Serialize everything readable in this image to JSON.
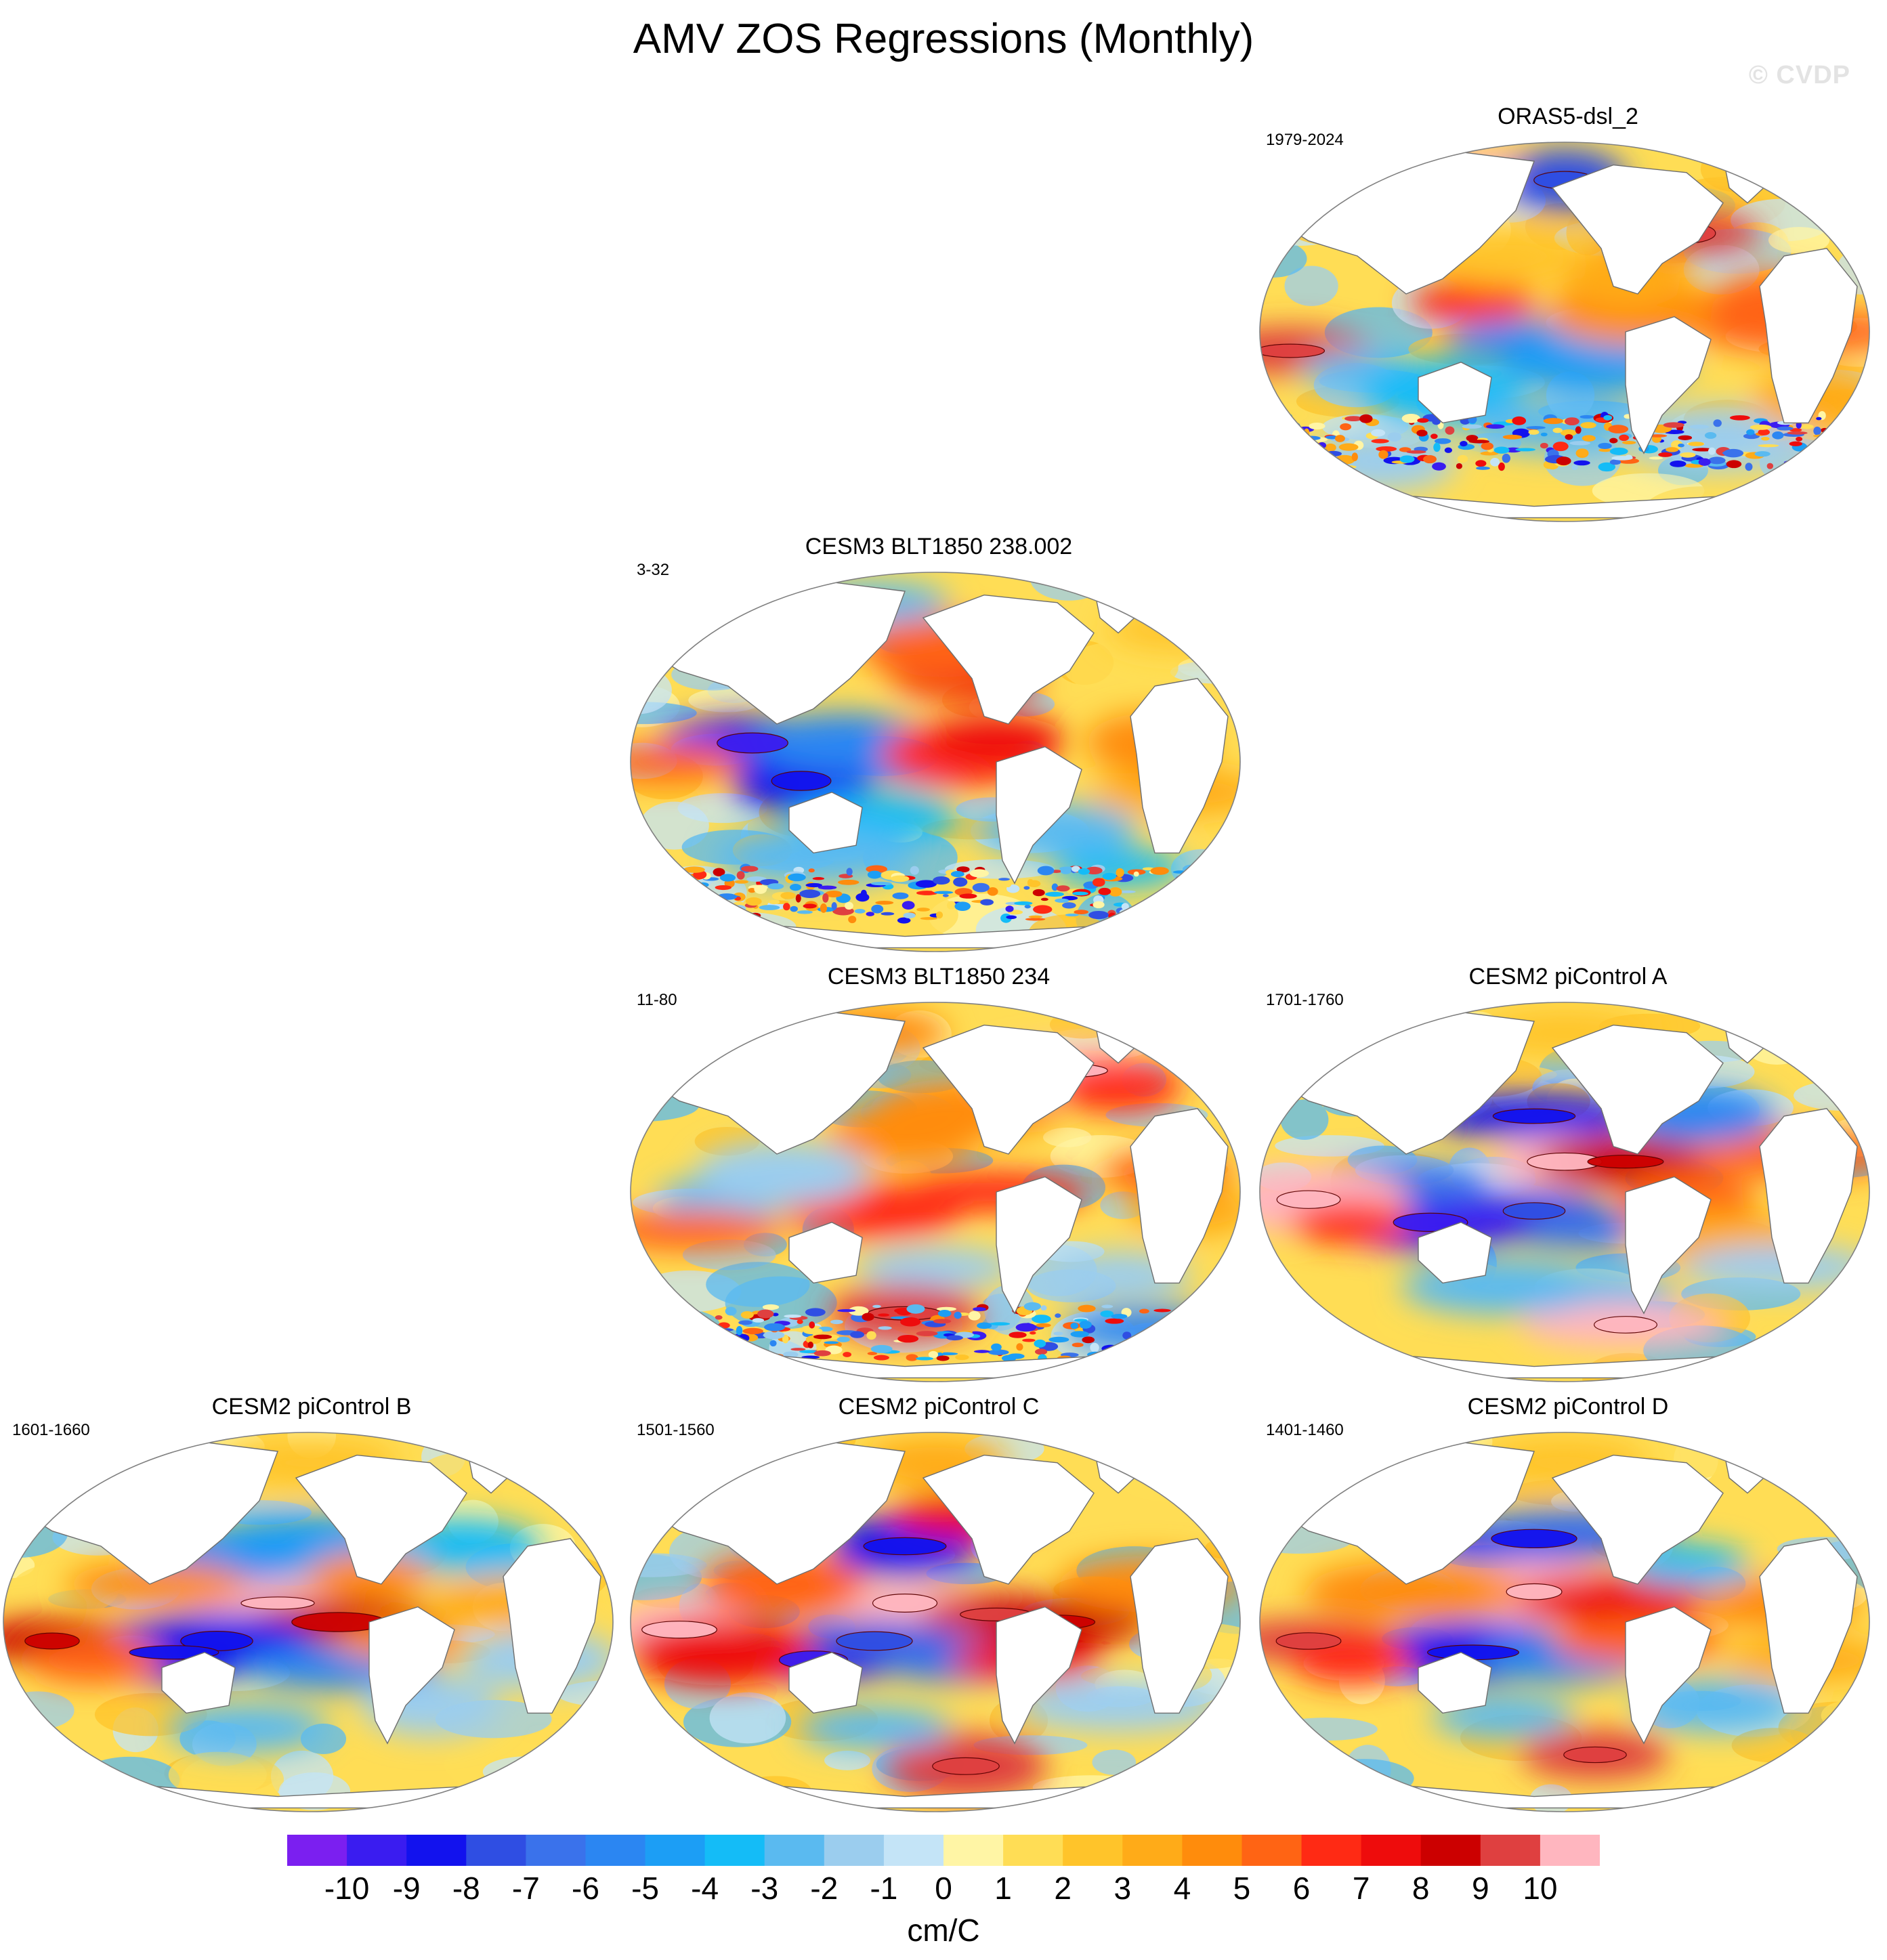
{
  "page": {
    "title": "AMV ZOS Regressions (Monthly)",
    "watermark": "© CVDP"
  },
  "colors": {
    "land": "#ffffff",
    "coast": "#6e6e6e",
    "levels": [
      "#7b1ff0",
      "#3a1cf0",
      "#1212ee",
      "#2f4ee3",
      "#3a72eb",
      "#2b86f2",
      "#1c9ef5",
      "#14bcf7",
      "#5abaf0",
      "#9bcdee",
      "#c4e4f7",
      "#fff5a5",
      "#ffdd55",
      "#ffc42a",
      "#ffab18",
      "#ff8c0c",
      "#ff6414",
      "#ff2a14",
      "#ee0c0c",
      "#cc0000",
      "#df4040",
      "#ffb6bf"
    ]
  },
  "chart_data": {
    "type": "map-panels",
    "variable": "ZOS regression on AMV",
    "units": "cm/C",
    "colorbar_ticks": [
      "-10",
      "-9",
      "-8",
      "-7",
      "-6",
      "-5",
      "-4",
      "-3",
      "-2",
      "-1",
      "0",
      "1",
      "2",
      "3",
      "4",
      "5",
      "6",
      "7",
      "8",
      "9",
      "10"
    ],
    "colorbar_levels": [
      -10,
      -9,
      -8,
      -7,
      -6,
      -5,
      -4,
      -3,
      -2,
      -1,
      0,
      1,
      2,
      3,
      4,
      5,
      6,
      7,
      8,
      9,
      10
    ],
    "panels": [
      {
        "id": "oras5",
        "title": "ORAS5-dsl_2",
        "years": "1979-2024",
        "row": 0,
        "col": 2,
        "blobs": [
          [
            0.35,
            0.42,
            6
          ],
          [
            0.45,
            0.52,
            -6
          ],
          [
            0.55,
            0.58,
            -5
          ],
          [
            0.62,
            0.45,
            4
          ],
          [
            0.05,
            0.55,
            9
          ],
          [
            0.7,
            0.24,
            9
          ],
          [
            0.36,
            0.08,
            10
          ],
          [
            0.5,
            0.1,
            -8
          ],
          [
            0.84,
            0.43,
            5
          ],
          [
            0.9,
            0.5,
            5
          ],
          [
            0.17,
            0.6,
            -3
          ],
          [
            0.3,
            0.66,
            -4
          ],
          [
            0.5,
            0.75,
            -3
          ],
          [
            0.2,
            0.84,
            -2
          ],
          [
            0.75,
            0.78,
            -2
          ],
          [
            0.92,
            0.68,
            3
          ],
          [
            0.6,
            0.35,
            3
          ],
          [
            0.4,
            0.3,
            2
          ]
        ],
        "noise_band": 0.72
      },
      {
        "id": "cesm3-238",
        "title": "CESM3 BLT1850 238.002",
        "years": "3-32",
        "row": 1,
        "col": 1,
        "blobs": [
          [
            0.2,
            0.45,
            -10
          ],
          [
            0.28,
            0.55,
            -9
          ],
          [
            0.35,
            0.45,
            -6
          ],
          [
            0.5,
            0.52,
            -6
          ],
          [
            0.55,
            0.48,
            6
          ],
          [
            0.6,
            0.44,
            7
          ],
          [
            0.55,
            0.28,
            7
          ],
          [
            0.5,
            0.2,
            5
          ],
          [
            0.06,
            0.5,
            5
          ],
          [
            0.85,
            0.45,
            4
          ],
          [
            0.9,
            0.58,
            3
          ],
          [
            0.7,
            0.68,
            -3
          ],
          [
            0.4,
            0.65,
            -4
          ],
          [
            0.3,
            0.75,
            -3
          ],
          [
            0.8,
            0.78,
            -4
          ],
          [
            0.9,
            0.15,
            2
          ],
          [
            0.4,
            0.08,
            -3
          ]
        ],
        "noise_band": 0.78
      },
      {
        "id": "cesm3-234",
        "title": "CESM3 BLT1850 234",
        "years": "11-80",
        "row": 2,
        "col": 1,
        "blobs": [
          [
            0.45,
            0.35,
            4
          ],
          [
            0.55,
            0.28,
            4
          ],
          [
            0.4,
            0.55,
            6
          ],
          [
            0.6,
            0.5,
            6
          ],
          [
            0.72,
            0.18,
            10
          ],
          [
            0.8,
            0.22,
            6
          ],
          [
            0.15,
            0.52,
            -3
          ],
          [
            0.25,
            0.45,
            -2
          ],
          [
            0.1,
            0.6,
            5
          ],
          [
            0.88,
            0.45,
            5
          ],
          [
            0.92,
            0.55,
            3
          ],
          [
            0.5,
            0.7,
            -2
          ],
          [
            0.8,
            0.72,
            -2
          ],
          [
            0.45,
            0.82,
            9
          ],
          [
            0.85,
            0.86,
            -6
          ],
          [
            0.4,
            0.08,
            4
          ]
        ],
        "noise_band": 0.8
      },
      {
        "id": "cesm2-a",
        "title": "CESM2 piControl A",
        "years": "1701-1760",
        "row": 2,
        "col": 2,
        "blobs": [
          [
            0.45,
            0.3,
            -9
          ],
          [
            0.5,
            0.42,
            10
          ],
          [
            0.6,
            0.42,
            8
          ],
          [
            0.45,
            0.55,
            -8
          ],
          [
            0.55,
            0.6,
            -7
          ],
          [
            0.28,
            0.58,
            -10
          ],
          [
            0.2,
            0.48,
            -7
          ],
          [
            0.08,
            0.52,
            10
          ],
          [
            0.15,
            0.58,
            6
          ],
          [
            0.7,
            0.52,
            5
          ],
          [
            0.75,
            0.62,
            3
          ],
          [
            0.55,
            0.78,
            -3
          ],
          [
            0.6,
            0.85,
            10
          ],
          [
            0.4,
            0.75,
            -3
          ],
          [
            0.88,
            0.4,
            5
          ],
          [
            0.72,
            0.3,
            -6
          ],
          [
            0.85,
            0.7,
            -2
          ],
          [
            0.5,
            0.08,
            2
          ]
        ],
        "noise_band": 0.0
      },
      {
        "id": "cesm2-b",
        "title": "CESM2 piControl B",
        "years": "1601-1660",
        "row": 3,
        "col": 0,
        "blobs": [
          [
            0.38,
            0.32,
            -6
          ],
          [
            0.5,
            0.28,
            -5
          ],
          [
            0.45,
            0.45,
            10
          ],
          [
            0.55,
            0.5,
            8
          ],
          [
            0.35,
            0.55,
            -9
          ],
          [
            0.28,
            0.58,
            -9
          ],
          [
            0.55,
            0.62,
            -6
          ],
          [
            0.65,
            0.55,
            4
          ],
          [
            0.08,
            0.55,
            8
          ],
          [
            0.15,
            0.6,
            5
          ],
          [
            0.7,
            0.72,
            -2
          ],
          [
            0.4,
            0.78,
            -3
          ],
          [
            0.25,
            0.4,
            4
          ],
          [
            0.75,
            0.3,
            -4
          ],
          [
            0.82,
            0.45,
            3
          ],
          [
            0.88,
            0.6,
            -2
          ],
          [
            0.6,
            0.38,
            4
          ],
          [
            0.5,
            0.08,
            2
          ]
        ],
        "noise_band": 0.0
      },
      {
        "id": "cesm2-c",
        "title": "CESM2 piControl C",
        "years": "1501-1560",
        "row": 3,
        "col": 1,
        "blobs": [
          [
            0.45,
            0.3,
            -9
          ],
          [
            0.55,
            0.22,
            7
          ],
          [
            0.45,
            0.45,
            10
          ],
          [
            0.6,
            0.48,
            9
          ],
          [
            0.3,
            0.6,
            -10
          ],
          [
            0.4,
            0.55,
            -8
          ],
          [
            0.55,
            0.6,
            -7
          ],
          [
            0.65,
            0.6,
            7
          ],
          [
            0.7,
            0.5,
            8
          ],
          [
            0.08,
            0.52,
            10
          ],
          [
            0.15,
            0.58,
            7
          ],
          [
            0.55,
            0.88,
            9
          ],
          [
            0.4,
            0.78,
            -3
          ],
          [
            0.8,
            0.72,
            -2
          ],
          [
            0.85,
            0.4,
            4
          ],
          [
            0.25,
            0.4,
            5
          ],
          [
            0.5,
            0.08,
            3
          ]
        ],
        "noise_band": 0.0
      },
      {
        "id": "cesm2-d",
        "title": "CESM2 piControl D",
        "years": "1401-1460",
        "row": 3,
        "col": 2,
        "blobs": [
          [
            0.45,
            0.28,
            -9
          ],
          [
            0.52,
            0.25,
            -7
          ],
          [
            0.45,
            0.42,
            10
          ],
          [
            0.58,
            0.44,
            7
          ],
          [
            0.35,
            0.58,
            -9
          ],
          [
            0.5,
            0.6,
            -6
          ],
          [
            0.62,
            0.55,
            5
          ],
          [
            0.08,
            0.55,
            9
          ],
          [
            0.15,
            0.6,
            6
          ],
          [
            0.55,
            0.85,
            9
          ],
          [
            0.4,
            0.75,
            -3
          ],
          [
            0.75,
            0.72,
            -3
          ],
          [
            0.7,
            0.35,
            -4
          ],
          [
            0.85,
            0.45,
            4
          ],
          [
            0.25,
            0.42,
            4
          ],
          [
            0.9,
            0.6,
            3
          ],
          [
            0.5,
            0.08,
            2
          ]
        ],
        "noise_band": 0.0
      }
    ]
  }
}
